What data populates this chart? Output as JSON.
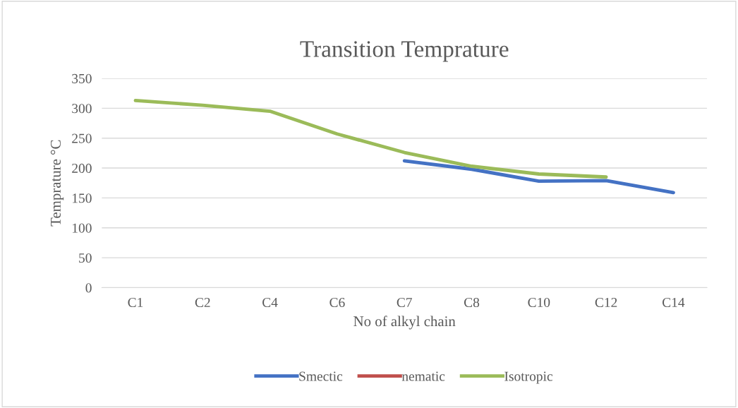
{
  "chart_data": {
    "type": "line",
    "title": "Transition Temprature",
    "xlabel": "No of alkyl chain",
    "ylabel": "Temprature °C",
    "categories": [
      "C1",
      "C2",
      "C4",
      "C6",
      "C7",
      "C8",
      "C10",
      "C12",
      "C14"
    ],
    "series": [
      {
        "name": "Smectic",
        "color": "#4472c4",
        "values": [
          null,
          null,
          null,
          null,
          212,
          198,
          178,
          179,
          159
        ]
      },
      {
        "name": "nematic",
        "color": "#c0504d",
        "values": [
          null,
          null,
          null,
          null,
          null,
          null,
          null,
          null,
          null
        ]
      },
      {
        "name": "Isotropic",
        "color": "#9bbb59",
        "values": [
          313,
          305,
          295,
          257,
          226,
          203,
          190,
          185,
          null
        ]
      }
    ],
    "ylim": [
      0,
      350
    ],
    "yticks": [
      0,
      50,
      100,
      150,
      200,
      250,
      300,
      350
    ],
    "grid": "y",
    "legend": "bottom",
    "marker": "none",
    "line_style": "solid"
  }
}
